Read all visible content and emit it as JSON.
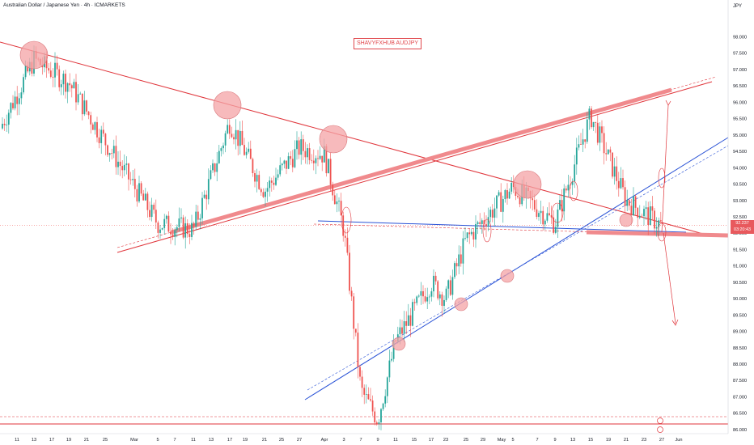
{
  "header": {
    "symbol_title": "Australian Dollar / Japanese Yen · 4h · ICMARKETS",
    "currency": "JPY",
    "watermark": "SHAVYFXHUB AUDJPY",
    "last_price": "92.237",
    "countdown": "03:20:43"
  },
  "colors": {
    "up": "#26a69a",
    "down": "#ef5350",
    "trend_red": "#e0353b",
    "zone_red": "#f08a8d",
    "trend_blue": "#2952d6",
    "circle_fill": "#f4a3a6"
  },
  "chart_data": {
    "type": "candlestick",
    "timeframe": "4h",
    "y_axis": {
      "range": [
        85.9,
        98.4
      ],
      "ticks": [
        "98.000",
        "97.500",
        "97.000",
        "96.500",
        "96.000",
        "95.500",
        "95.000",
        "94.500",
        "94.000",
        "93.500",
        "93.000",
        "92.500",
        "92.000",
        "91.500",
        "91.000",
        "90.500",
        "90.000",
        "89.500",
        "89.000",
        "88.500",
        "88.000",
        "87.500",
        "87.000",
        "86.500",
        "86.000"
      ]
    },
    "x_axis": {
      "labels": [
        "11",
        "13",
        "17",
        "19",
        "21",
        "25",
        "Mar",
        "5",
        "7",
        "11",
        "13",
        "17",
        "19",
        "21",
        "25",
        "27",
        "Apr",
        "3",
        "7",
        "9",
        "11",
        "15",
        "17",
        "23",
        "25",
        "29",
        "May",
        "5",
        "7",
        "9",
        "13",
        "15",
        "19",
        "21",
        "23",
        "27",
        "Jun"
      ]
    },
    "price_path": [
      {
        "date": "Feb 10",
        "close": 95.2
      },
      {
        "date": "Feb 13",
        "close": 97.3
      },
      {
        "date": "Feb 19",
        "close": 96.6
      },
      {
        "date": "Feb 25",
        "close": 94.8
      },
      {
        "date": "Mar 3",
        "close": 92.3
      },
      {
        "date": "Mar 11",
        "close": 92.1
      },
      {
        "date": "Mar 17",
        "close": 95.4
      },
      {
        "date": "Mar 21",
        "close": 93.3
      },
      {
        "date": "Mar 27",
        "close": 94.6
      },
      {
        "date": "Apr 1",
        "close": 94.4
      },
      {
        "date": "Apr 2",
        "close": 92.1
      },
      {
        "date": "Apr 7",
        "close": 87.2
      },
      {
        "date": "Apr 9",
        "close": 86.3
      },
      {
        "date": "Apr 11",
        "close": 88.7
      },
      {
        "date": "Apr 17",
        "close": 90.5
      },
      {
        "date": "Apr 23",
        "close": 90.0
      },
      {
        "date": "Apr 25",
        "close": 91.8
      },
      {
        "date": "May 2",
        "close": 93.4
      },
      {
        "date": "May 7",
        "close": 92.3
      },
      {
        "date": "May 13",
        "close": 95.6
      },
      {
        "date": "May 19",
        "close": 93.0
      },
      {
        "date": "May 23",
        "close": 92.237
      }
    ]
  }
}
